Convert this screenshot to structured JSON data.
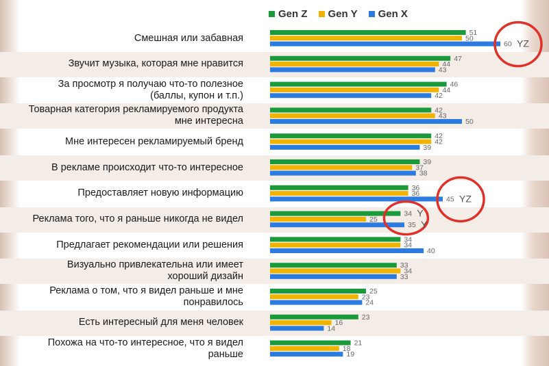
{
  "chart_data": {
    "type": "bar",
    "orientation": "horizontal",
    "categories": [
      "Смешная или забавная",
      "Звучит музыка, которая мне нравится",
      "За просмотр я получаю что-то полезное\n(баллы, купон и т.п.)",
      "Товарная категория рекламируемого продукта\nмне интересна",
      "Мне интересен рекламируемый бренд",
      "В рекламе происходит что-то интересное",
      "Предоставляет новую информацию",
      "Реклама того, что я раньше никогда не видел",
      "Предлагает рекомендации или решения",
      "Визуально привлекательна или имеет\nхороший дизайн",
      "Реклама о том, что я видел раньше и мне\nпонравилось",
      "Есть интересный для меня человек",
      "Похожа на что-то интересное, что я видел\nраньше"
    ],
    "series": [
      {
        "name": "Gen Z",
        "color": "#1a9a3a",
        "values": [
          51,
          47,
          46,
          42,
          42,
          39,
          36,
          34,
          34,
          33,
          25,
          23,
          21
        ]
      },
      {
        "name": "Gen Y",
        "color": "#f2b300",
        "values": [
          50,
          44,
          44,
          43,
          42,
          37,
          36,
          25,
          34,
          34,
          23,
          16,
          18
        ]
      },
      {
        "name": "Gen X",
        "color": "#2b7be0",
        "values": [
          60,
          43,
          42,
          50,
          39,
          38,
          45,
          35,
          40,
          33,
          24,
          14,
          19
        ]
      }
    ],
    "annotations": [
      {
        "category_index": 0,
        "series": "Gen X",
        "text": "YZ",
        "circled": true
      },
      {
        "category_index": 6,
        "series": "Gen X",
        "text": "YZ",
        "circled": true
      },
      {
        "category_index": 7,
        "series": "Gen Z",
        "text": "Y",
        "circled": true
      },
      {
        "category_index": 7,
        "series": "Gen X",
        "text": "Y",
        "circled": false
      }
    ],
    "legend_position": "top",
    "grid": false,
    "xlim": [
      0,
      70
    ],
    "stripe_color": "#f3ece7",
    "circle_color": "#e0302a"
  }
}
